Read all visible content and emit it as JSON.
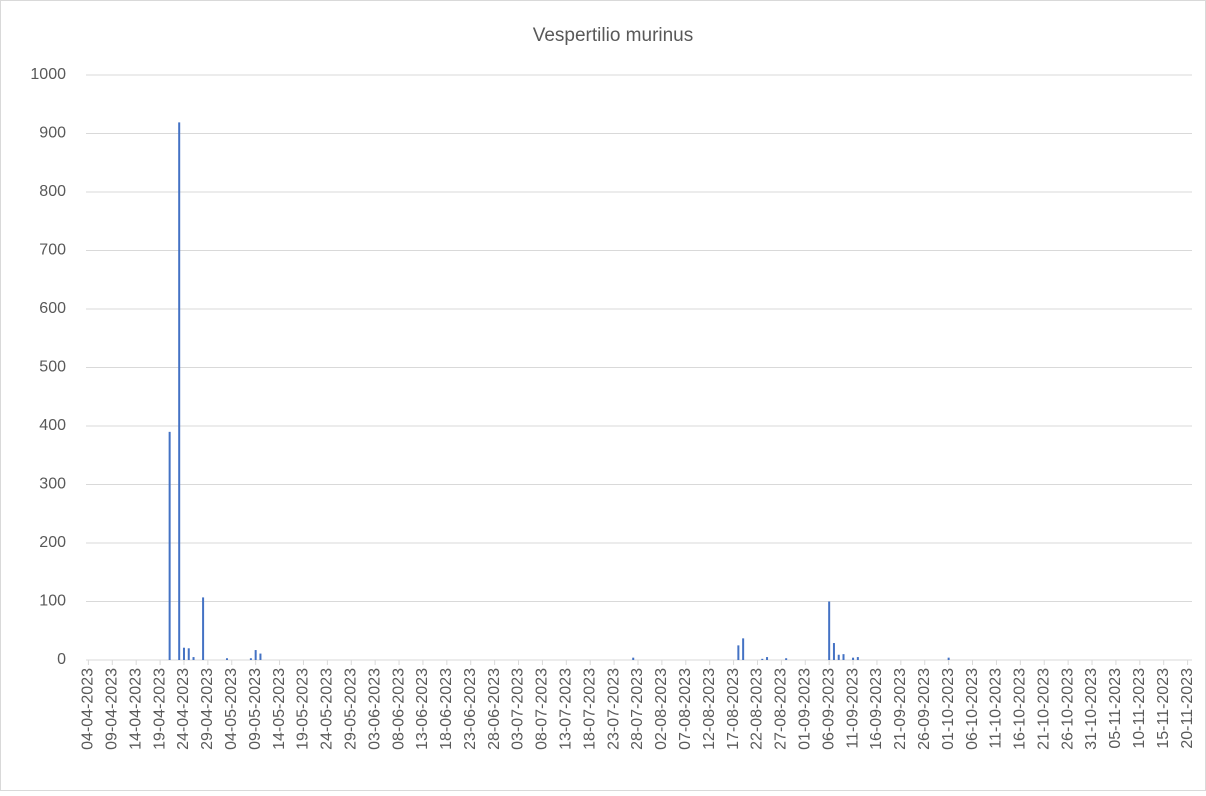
{
  "chart_data": {
    "type": "bar",
    "title": "Vespertilio murinus",
    "x": [
      "21-04-2023",
      "23-04-2023",
      "24-04-2023",
      "25-04-2023",
      "26-04-2023",
      "28-04-2023",
      "03-05-2023",
      "08-05-2023",
      "09-05-2023",
      "10-05-2023",
      "27-07-2023",
      "18-08-2023",
      "19-08-2023",
      "23-08-2023",
      "24-08-2023",
      "28-08-2023",
      "06-09-2023",
      "07-09-2023",
      "08-09-2023",
      "09-09-2023",
      "11-09-2023",
      "12-09-2023",
      "01-10-2023"
    ],
    "values": [
      390,
      919,
      21,
      20,
      5,
      107,
      3,
      3,
      17,
      11,
      4,
      25,
      37,
      2,
      5,
      3,
      100,
      29,
      9,
      10,
      4,
      5,
      4
    ],
    "color": "#4472c4",
    "xlim": [
      "04-04-2023",
      "20-11-2023"
    ],
    "xticks": [
      "04-04-2023",
      "09-04-2023",
      "14-04-2023",
      "19-04-2023",
      "24-04-2023",
      "29-04-2023",
      "04-05-2023",
      "09-05-2023",
      "14-05-2023",
      "19-05-2023",
      "24-05-2023",
      "29-05-2023",
      "03-06-2023",
      "08-06-2023",
      "13-06-2023",
      "18-06-2023",
      "23-06-2023",
      "28-06-2023",
      "03-07-2023",
      "08-07-2023",
      "13-07-2023",
      "18-07-2023",
      "23-07-2023",
      "28-07-2023",
      "02-08-2023",
      "07-08-2023",
      "12-08-2023",
      "17-08-2023",
      "22-08-2023",
      "27-08-2023",
      "01-09-2023",
      "06-09-2023",
      "11-09-2023",
      "16-09-2023",
      "21-09-2023",
      "26-09-2023",
      "01-10-2023",
      "06-10-2023",
      "11-10-2023",
      "16-10-2023",
      "21-10-2023",
      "26-10-2023",
      "31-10-2023",
      "05-11-2023",
      "10-11-2023",
      "15-11-2023",
      "20-11-2023"
    ],
    "ylim": [
      0,
      1000
    ],
    "yticks": [
      0,
      100,
      200,
      300,
      400,
      500,
      600,
      700,
      800,
      900,
      1000
    ],
    "grid": true
  }
}
